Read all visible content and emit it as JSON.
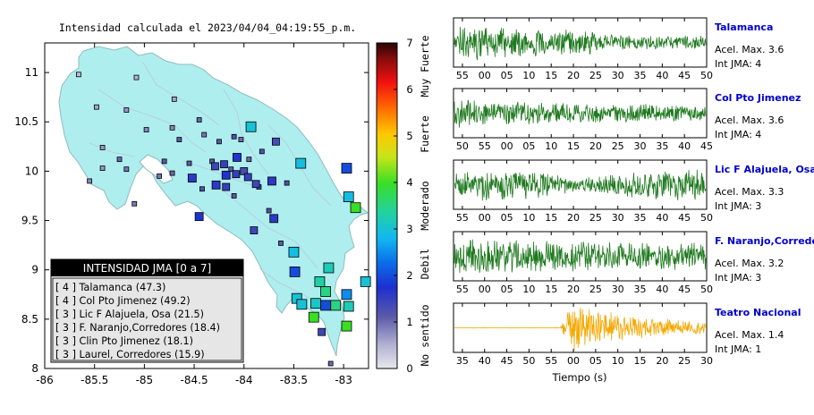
{
  "map": {
    "title": "Intensidad calculada el 2023/04/04_04:19:55_p.m.",
    "x_ticks": [
      "-86",
      "-85.5",
      "-85",
      "-84.5",
      "-84",
      "-83.5",
      "-83"
    ],
    "y_ticks": [
      "11",
      "10.5",
      "10",
      "9.5",
      "9",
      "8.5",
      "8"
    ],
    "xlim": [
      -86,
      -82.75
    ],
    "ylim": [
      8,
      11.3
    ],
    "colorbar": {
      "ticks": [
        "0",
        "1",
        "2",
        "3",
        "4",
        "5",
        "6",
        "7"
      ],
      "labels": [
        "No sentido",
        "Debil",
        "Moderado",
        "Fuerte",
        "Muy Fuerte"
      ],
      "range": [
        0,
        7
      ]
    },
    "legend": {
      "title": "INTENSIDAD JMA [0 a 7]",
      "items": [
        "[ 4 ]  Talamanca (47.3)",
        "[ 4 ]  Col Pto Jimenez (49.2)",
        "[ 3 ]  Lic F Alajuela, Osa (21.5)",
        "[ 3 ]  F. Naranjo,Corredores (18.4)",
        "[ 3 ]  Clin Pto Jimenez (18.1)",
        "[ 3 ]  Laurel, Corredores (15.9)"
      ]
    }
  },
  "waveforms": {
    "xlabel": "Tiempo (s)",
    "panels": [
      {
        "name": "Talamanca",
        "acel": "Acel. Max. 3.6",
        "int": "Int JMA: 4",
        "ticks": [
          "55",
          "00",
          "05",
          "10",
          "15",
          "20",
          "25",
          "30",
          "35",
          "40",
          "45",
          "50"
        ],
        "color": "#1f7a1f"
      },
      {
        "name": "Col Pto Jimenez",
        "acel": "Acel. Max. 3.6",
        "int": "Int JMA: 4",
        "ticks": [
          "50",
          "55",
          "00",
          "05",
          "10",
          "15",
          "20",
          "25",
          "30",
          "35",
          "40",
          "45"
        ],
        "color": "#1f7a1f"
      },
      {
        "name": "Lic F Alajuela, Osa",
        "acel": "Acel. Max. 3.3",
        "int": "Int JMA: 3",
        "ticks": [
          "55",
          "00",
          "05",
          "10",
          "15",
          "20",
          "25",
          "30",
          "35",
          "40",
          "45",
          "50"
        ],
        "color": "#1f7a1f"
      },
      {
        "name": "F. Naranjo,Corredores",
        "acel": "Acel. Max. 3.2",
        "int": "Int JMA: 3",
        "ticks": [
          "55",
          "00",
          "05",
          "10",
          "15",
          "20",
          "25",
          "30",
          "35",
          "40",
          "45",
          "50"
        ],
        "color": "#1f7a1f"
      },
      {
        "name": "Teatro Nacional",
        "acel": "Acel. Max. 1.4",
        "int": "Int JMA: 1",
        "ticks": [
          "35",
          "40",
          "45",
          "50",
          "55",
          "00",
          "05",
          "10",
          "15",
          "20",
          "25",
          "30"
        ],
        "color": "#f5a800"
      }
    ]
  },
  "colors": {
    "land": "#aeeeee",
    "panel_title": "#0000cc",
    "legend_bg": "#e6e6e6",
    "legend_header": "#000000"
  },
  "chart_data": {
    "type": "scatter",
    "title": "Intensidad calculada el 2023/04/04_04:19:55_p.m.",
    "xlabel": "",
    "ylabel": "",
    "xlim": [
      -86,
      -82.75
    ],
    "ylim": [
      8,
      11.3
    ],
    "series": [
      {
        "points": [
          {
            "x": -83.43,
            "y": 10.08,
            "v": 2.9
          },
          {
            "x": -82.97,
            "y": 10.03,
            "v": 2.0
          },
          {
            "x": -82.95,
            "y": 9.74,
            "v": 2.9
          },
          {
            "x": -82.88,
            "y": 9.63,
            "v": 4.0
          },
          {
            "x": -83.93,
            "y": 10.45,
            "v": 3.0
          },
          {
            "x": -84.07,
            "y": 10.14,
            "v": 1.7
          },
          {
            "x": -84.2,
            "y": 10.07,
            "v": 1.5
          },
          {
            "x": -84.29,
            "y": 10.05,
            "v": 1.4
          },
          {
            "x": -84.18,
            "y": 9.96,
            "v": 1.7
          },
          {
            "x": -84.08,
            "y": 9.97,
            "v": 1.5
          },
          {
            "x": -84.0,
            "y": 10.0,
            "v": 1.3
          },
          {
            "x": -83.96,
            "y": 9.94,
            "v": 1.5
          },
          {
            "x": -83.88,
            "y": 9.87,
            "v": 1.4
          },
          {
            "x": -83.85,
            "y": 9.84,
            "v": 1.2
          },
          {
            "x": -83.72,
            "y": 9.9,
            "v": 1.6
          },
          {
            "x": -84.28,
            "y": 9.86,
            "v": 1.6
          },
          {
            "x": -84.18,
            "y": 9.84,
            "v": 1.5
          },
          {
            "x": -84.52,
            "y": 9.93,
            "v": 1.6
          },
          {
            "x": -84.45,
            "y": 9.54,
            "v": 1.8
          },
          {
            "x": -83.7,
            "y": 9.52,
            "v": 1.6
          },
          {
            "x": -83.5,
            "y": 9.18,
            "v": 2.9
          },
          {
            "x": -83.49,
            "y": 8.98,
            "v": 2.0
          },
          {
            "x": -83.15,
            "y": 9.02,
            "v": 3.2
          },
          {
            "x": -83.24,
            "y": 8.88,
            "v": 3.3
          },
          {
            "x": -83.18,
            "y": 8.78,
            "v": 3.5
          },
          {
            "x": -82.97,
            "y": 8.75,
            "v": 2.5
          },
          {
            "x": -82.78,
            "y": 8.88,
            "v": 3.0
          },
          {
            "x": -83.47,
            "y": 8.71,
            "v": 3.0
          },
          {
            "x": -83.42,
            "y": 8.65,
            "v": 3.0
          },
          {
            "x": -83.28,
            "y": 8.66,
            "v": 3.1
          },
          {
            "x": -83.18,
            "y": 8.64,
            "v": 2.0
          },
          {
            "x": -83.08,
            "y": 8.64,
            "v": 3.5
          },
          {
            "x": -82.95,
            "y": 8.63,
            "v": 3.2
          },
          {
            "x": -83.3,
            "y": 8.52,
            "v": 4.0
          },
          {
            "x": -82.97,
            "y": 8.43,
            "v": 4.0
          },
          {
            "x": -84.65,
            "y": 10.32,
            "v": 1.1
          },
          {
            "x": -84.45,
            "y": 10.52,
            "v": 1.0
          },
          {
            "x": -84.1,
            "y": 10.35,
            "v": 1.2
          },
          {
            "x": -84.25,
            "y": 10.3,
            "v": 1.1
          },
          {
            "x": -84.32,
            "y": 10.1,
            "v": 1.1
          },
          {
            "x": -84.13,
            "y": 10.02,
            "v": 1.1
          },
          {
            "x": -83.95,
            "y": 10.12,
            "v": 1.0
          },
          {
            "x": -83.82,
            "y": 10.2,
            "v": 1.2
          },
          {
            "x": -84.55,
            "y": 10.08,
            "v": 1.1
          },
          {
            "x": -84.72,
            "y": 9.98,
            "v": 1.0
          },
          {
            "x": -84.8,
            "y": 10.1,
            "v": 1.1
          },
          {
            "x": -85.18,
            "y": 10.02,
            "v": 0.9
          },
          {
            "x": -85.25,
            "y": 10.12,
            "v": 1.0
          },
          {
            "x": -85.42,
            "y": 10.03,
            "v": 0.7
          },
          {
            "x": -85.55,
            "y": 9.9,
            "v": 0.8
          },
          {
            "x": -85.1,
            "y": 9.67,
            "v": 0.9
          },
          {
            "x": -84.4,
            "y": 10.37,
            "v": 0.9
          },
          {
            "x": -84.72,
            "y": 10.44,
            "v": 0.8
          },
          {
            "x": -84.98,
            "y": 10.42,
            "v": 0.8
          },
          {
            "x": -85.18,
            "y": 10.62,
            "v": 0.7
          },
          {
            "x": -85.48,
            "y": 10.65,
            "v": 0.6
          },
          {
            "x": -85.66,
            "y": 10.98,
            "v": 0.4
          },
          {
            "x": -85.08,
            "y": 10.95,
            "v": 0.5
          },
          {
            "x": -84.7,
            "y": 10.73,
            "v": 0.6
          },
          {
            "x": -83.68,
            "y": 10.3,
            "v": 1.3
          },
          {
            "x": -83.57,
            "y": 9.88,
            "v": 1.2
          },
          {
            "x": -83.75,
            "y": 9.6,
            "v": 1.2
          },
          {
            "x": -84.1,
            "y": 9.75,
            "v": 1.1
          },
          {
            "x": -84.42,
            "y": 9.82,
            "v": 1.2
          },
          {
            "x": -83.9,
            "y": 9.4,
            "v": 1.4
          },
          {
            "x": -83.63,
            "y": 9.27,
            "v": 1.1
          },
          {
            "x": -84.03,
            "y": 10.32,
            "v": 1.0
          },
          {
            "x": -83.22,
            "y": 8.37,
            "v": 1.4
          },
          {
            "x": -84.85,
            "y": 9.95,
            "v": 0.9
          },
          {
            "x": -85.42,
            "y": 10.24,
            "v": 0.7
          },
          {
            "x": -83.13,
            "y": 8.05,
            "v": 1.0
          }
        ]
      }
    ]
  }
}
